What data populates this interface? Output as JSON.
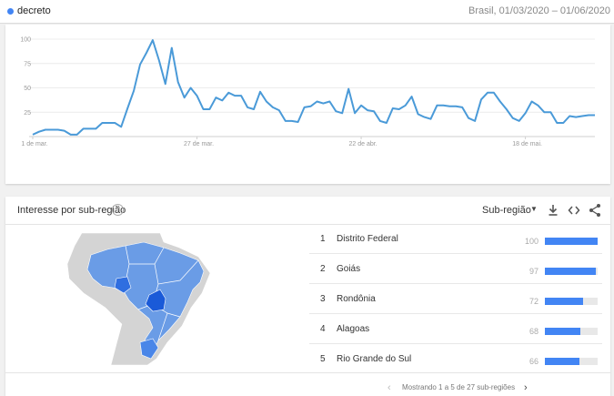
{
  "header": {
    "term": "decreto",
    "range": "Brasil, 01/03/2020 – 01/06/2020",
    "term_color": "#4285f4"
  },
  "chart_data": {
    "type": "line",
    "series": [
      {
        "name": "decreto",
        "color": "#4a9ad8",
        "values": [
          2,
          5,
          7,
          7,
          7,
          6,
          2,
          2,
          8,
          8,
          8,
          14,
          14,
          14,
          10,
          29,
          47,
          74,
          86,
          99,
          78,
          54,
          91,
          56,
          40,
          50,
          42,
          28,
          28,
          40,
          37,
          45,
          42,
          42,
          30,
          28,
          46,
          36,
          30,
          27,
          16,
          16,
          15,
          30,
          31,
          36,
          34,
          36,
          26,
          24,
          49,
          24,
          32,
          27,
          26,
          16,
          14,
          29,
          28,
          32,
          41,
          23,
          20,
          18,
          32,
          32,
          31,
          31,
          30,
          19,
          16,
          38,
          45,
          45,
          36,
          28,
          19,
          16,
          24,
          36,
          32,
          25,
          25,
          14,
          14,
          21,
          20,
          21,
          22,
          22
        ]
      }
    ],
    "ylim": [
      0,
      100
    ],
    "yticks": [
      "100",
      "75",
      "50",
      "25"
    ],
    "xtick_labels": [
      "1 de mar.",
      "27 de mar.",
      "22 de abr.",
      "18 de mai."
    ],
    "xtick_index": [
      0,
      26,
      52,
      78
    ],
    "grid": true
  },
  "region": {
    "title": "Interesse por sub-região",
    "resolution": "Sub-região",
    "help_icon": "help-icon",
    "download_icon": "download-icon",
    "embed_icon": "embed-icon",
    "share_icon": "share-icon",
    "ranking": [
      {
        "rank": "1",
        "name": "Distrito Federal",
        "value": "100",
        "fraction": 1.0
      },
      {
        "rank": "2",
        "name": "Goiás",
        "value": "97",
        "fraction": 0.97
      },
      {
        "rank": "3",
        "name": "Rondônia",
        "value": "72",
        "fraction": 0.72
      },
      {
        "rank": "4",
        "name": "Alagoas",
        "value": "68",
        "fraction": 0.68
      },
      {
        "rank": "5",
        "name": "Rio Grande do Sul",
        "value": "66",
        "fraction": 0.66
      }
    ],
    "pager_text": "Mostrando 1 a 5 de 27 sub-regiões"
  },
  "colors": {
    "bar": "#4285f4",
    "map_light": "#6a9ce6",
    "map_dark": "#1a5ad8",
    "map_other": "#d4d4d4"
  }
}
